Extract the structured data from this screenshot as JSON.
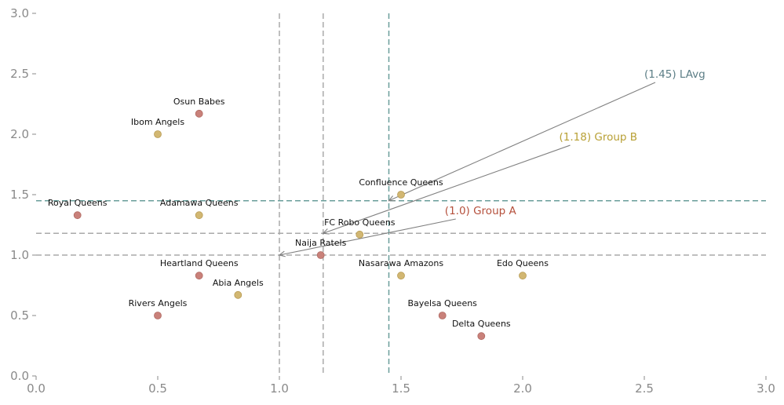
{
  "chart_data": {
    "type": "scatter",
    "title": "",
    "xlabel": "",
    "ylabel": "",
    "xlim": [
      0,
      3
    ],
    "ylim": [
      0,
      3
    ],
    "x_ticks": [
      "0.0",
      "0.5",
      "1.0",
      "1.5",
      "2.0",
      "2.5",
      "3.0"
    ],
    "y_ticks": [
      "0.0",
      "0.5",
      "1.0",
      "1.5",
      "2.0",
      "2.5",
      "3.0"
    ],
    "grid": false,
    "colors": {
      "group_a": "#c9817a",
      "group_b": "#d2b772",
      "lavg": "#6a9e9a",
      "ref": "#aaaaaa",
      "arrow": "#808080",
      "ann_a": "#b5503c",
      "ann_b": "#b8a035",
      "ann_lavg": "#5c7e86"
    },
    "points": [
      {
        "label": "Osun Babes",
        "x": 0.67,
        "y": 2.17,
        "group": "a"
      },
      {
        "label": "Ibom Angels",
        "x": 0.5,
        "y": 2.0,
        "group": "b"
      },
      {
        "label": "Royal Queens",
        "x": 0.17,
        "y": 1.33,
        "group": "a"
      },
      {
        "label": "Adamawa Queens",
        "x": 0.67,
        "y": 1.33,
        "group": "b"
      },
      {
        "label": "Confluence Queens",
        "x": 1.5,
        "y": 1.5,
        "group": "b"
      },
      {
        "label": "FC Robo Queens",
        "x": 1.33,
        "y": 1.17,
        "group": "b"
      },
      {
        "label": "Naija Ratels",
        "x": 1.17,
        "y": 1.0,
        "group": "a"
      },
      {
        "label": "Heartland Queens",
        "x": 0.67,
        "y": 0.83,
        "group": "a"
      },
      {
        "label": "Abia Angels",
        "x": 0.83,
        "y": 0.67,
        "group": "b"
      },
      {
        "label": "Rivers Angels",
        "x": 0.5,
        "y": 0.5,
        "group": "a"
      },
      {
        "label": "Nasarawa Amazons",
        "x": 1.5,
        "y": 0.83,
        "group": "b"
      },
      {
        "label": "Edo Queens",
        "x": 2.0,
        "y": 0.83,
        "group": "b"
      },
      {
        "label": "Bayelsa Queens",
        "x": 1.67,
        "y": 0.5,
        "group": "a"
      },
      {
        "label": "Delta Queens",
        "x": 1.83,
        "y": 0.33,
        "group": "a"
      }
    ],
    "reference_lines": [
      {
        "value": 1.0,
        "style": "ref"
      },
      {
        "value": 1.18,
        "style": "ref"
      },
      {
        "value": 1.45,
        "style": "lavg"
      }
    ],
    "annotations": [
      {
        "text": "(1.45) LAvg",
        "x": 2.5,
        "y": 2.5,
        "target_x": 1.45,
        "target_y": 1.45,
        "color": "ann_lavg"
      },
      {
        "text": "(1.18) Group B",
        "x": 2.15,
        "y": 1.98,
        "target_x": 1.18,
        "target_y": 1.18,
        "color": "ann_b"
      },
      {
        "text": "(1.0) Group A",
        "x": 1.68,
        "y": 1.37,
        "target_x": 1.0,
        "target_y": 1.0,
        "color": "ann_a"
      }
    ]
  }
}
